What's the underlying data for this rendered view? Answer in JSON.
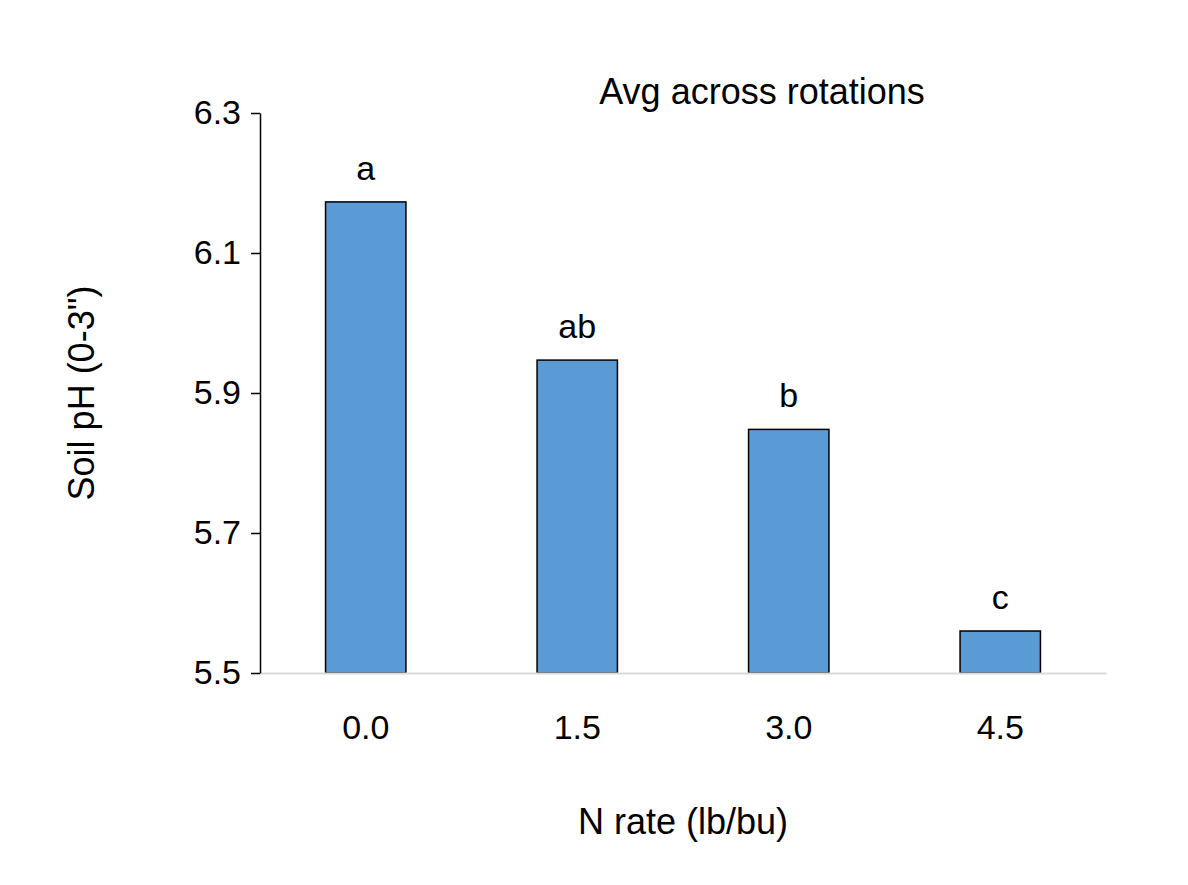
{
  "chart_data": {
    "type": "bar",
    "title": "Avg across rotations",
    "x_label": "N rate (lb/bu)",
    "y_label": "Soil pH (0-3\")",
    "categories": [
      "0.0",
      "1.5",
      "3.0",
      "4.5"
    ],
    "values": [
      6.173,
      5.947,
      5.848,
      5.56
    ],
    "annotations": [
      "a",
      "ab",
      "b",
      "c"
    ],
    "color": "#5b9bd5",
    "ylim": [
      5.5,
      6.3
    ],
    "yticks": [
      5.5,
      5.7,
      5.9,
      6.1,
      6.3
    ],
    "grid": false
  }
}
